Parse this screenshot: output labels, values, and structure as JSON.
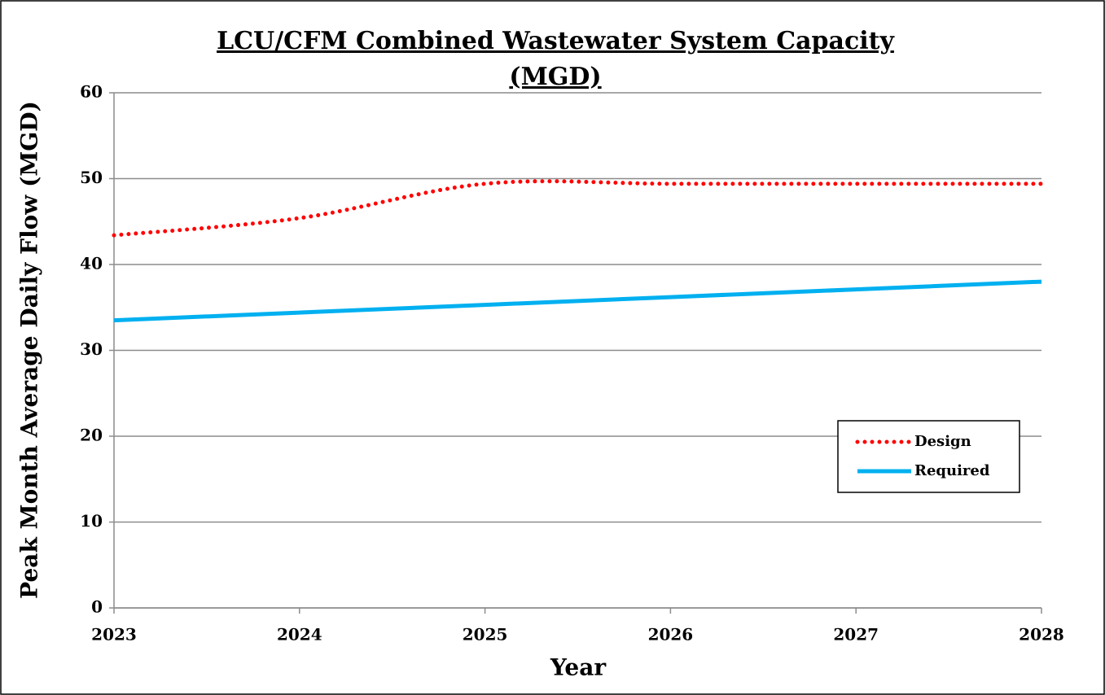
{
  "chart_data": {
    "type": "line",
    "title": [
      "LCU/CFM Combined Wastewater System Capacity",
      "(MGD)"
    ],
    "x_label": "Year",
    "y_label": "Peak Month Average Daily Flow (MGD)",
    "x": [
      2023,
      2024,
      2025,
      2026,
      2027,
      2028
    ],
    "series": [
      {
        "name": "Design",
        "color": "#ff0000",
        "style": "dotted",
        "values": [
          43.4,
          45.4,
          49.4,
          49.4,
          49.4,
          49.4
        ]
      },
      {
        "name": "Required",
        "color": "#00b0f0",
        "style": "solid",
        "values": [
          33.5,
          34.4,
          35.3,
          36.2,
          37.1,
          38.0
        ]
      }
    ],
    "xlim": [
      2023,
      2028
    ],
    "xticks": [
      2023,
      2024,
      2025,
      2026,
      2027,
      2028
    ],
    "ylim": [
      0,
      60
    ],
    "yticks": [
      0,
      10,
      20,
      30,
      40,
      50,
      60
    ],
    "grid": true,
    "smooth": true,
    "legend": "right"
  }
}
